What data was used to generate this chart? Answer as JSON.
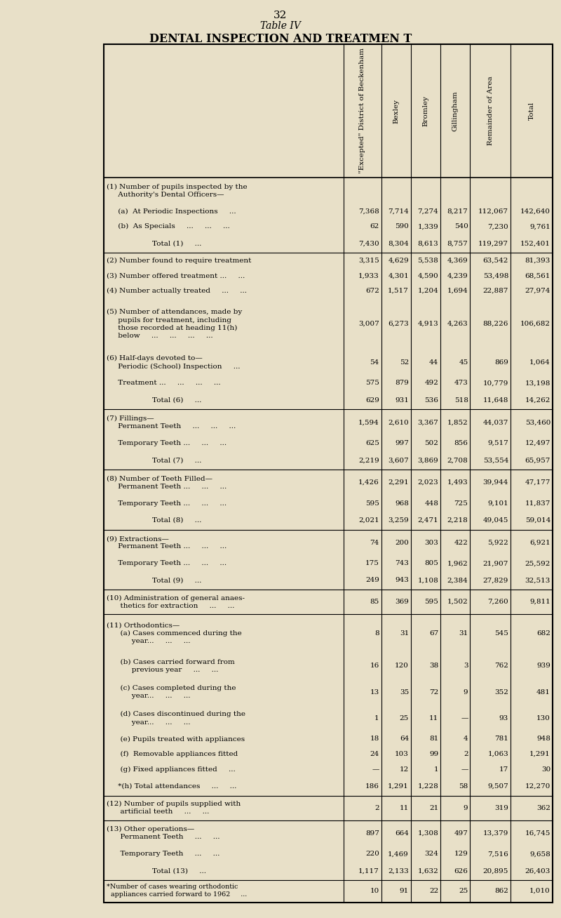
{
  "page_number": "32",
  "title_line1": "Table IV",
  "title_line2": "DENTAL INSPECTION AND TREATMEN T",
  "bg_color": "#e8e0c8",
  "col_headers": [
    "\"Excepted\" District of Beckenham",
    "Bexley",
    "Bromley",
    "Gillingham",
    "Remainder of Area",
    "Total"
  ],
  "rows": [
    {
      "label": "(1) Number of pupils inspected by the\n     Authority's Dental Officers—",
      "values": [
        "",
        "",
        "",
        "",
        "",
        ""
      ],
      "type": "header"
    },
    {
      "label": "     (a)  At Periodic Inspections     ...",
      "values": [
        "7,368",
        "7,714",
        "7,274",
        "8,217",
        "112,067",
        "142,640"
      ],
      "type": "data"
    },
    {
      "label": "     (b)  As Specials     ...     ...     ...",
      "values": [
        "62",
        "590",
        "1,339",
        "540",
        "7,230",
        "9,761"
      ],
      "type": "data"
    },
    {
      "label": "                    Total (1)     ...",
      "values": [
        "7,430",
        "8,304",
        "8,613",
        "8,757",
        "119,297",
        "152,401"
      ],
      "type": "total"
    },
    {
      "label": "(2) Number found to require treatment",
      "values": [
        "3,315",
        "4,629",
        "5,538",
        "4,369",
        "63,542",
        "81,393"
      ],
      "type": "data"
    },
    {
      "label": "(3) Number offered treatment ...     ...",
      "values": [
        "1,933",
        "4,301",
        "4,590",
        "4,239",
        "53,498",
        "68,561"
      ],
      "type": "data"
    },
    {
      "label": "(4) Number actually treated     ...     ...",
      "values": [
        "672",
        "1,517",
        "1,204",
        "1,694",
        "22,887",
        "27,974"
      ],
      "type": "data"
    },
    {
      "label": "(5) Number of attendances, made by\n     pupils for treatment, including\n     those recorded at heading 11(h)\n     below     ...     ...     ...     ...",
      "values": [
        "3,007",
        "6,273",
        "4,913",
        "4,263",
        "88,226",
        "106,682"
      ],
      "type": "data"
    },
    {
      "label": "(6) Half-days devoted to—\n     Periodic (School) Inspection     ...",
      "values": [
        "54",
        "52",
        "44",
        "45",
        "869",
        "1,064"
      ],
      "type": "data"
    },
    {
      "label": "     Treatment ...     ...     ...     ...",
      "values": [
        "575",
        "879",
        "492",
        "473",
        "10,779",
        "13,198"
      ],
      "type": "data"
    },
    {
      "label": "                    Total (6)     ...",
      "values": [
        "629",
        "931",
        "536",
        "518",
        "11,648",
        "14,262"
      ],
      "type": "total"
    },
    {
      "label": "(7) Fillings—\n     Permanent Teeth     ...     ...     ...",
      "values": [
        "1,594",
        "2,610",
        "3,367",
        "1,852",
        "44,037",
        "53,460"
      ],
      "type": "data"
    },
    {
      "label": "     Temporary Teeth ...     ...     ...",
      "values": [
        "625",
        "997",
        "502",
        "856",
        "9,517",
        "12,497"
      ],
      "type": "data"
    },
    {
      "label": "                    Total (7)     ...",
      "values": [
        "2,219",
        "3,607",
        "3,869",
        "2,708",
        "53,554",
        "65,957"
      ],
      "type": "total"
    },
    {
      "label": "(8) Number of Teeth Filled—\n     Permanent Teeth ...     ...     ...",
      "values": [
        "1,426",
        "2,291",
        "2,023",
        "1,493",
        "39,944",
        "47,177"
      ],
      "type": "data"
    },
    {
      "label": "     Temporary Teeth ...     ...     ...",
      "values": [
        "595",
        "968",
        "448",
        "725",
        "9,101",
        "11,837"
      ],
      "type": "data"
    },
    {
      "label": "                    Total (8)     ...",
      "values": [
        "2,021",
        "3,259",
        "2,471",
        "2,218",
        "49,045",
        "59,014"
      ],
      "type": "total"
    },
    {
      "label": "(9) Extractions—\n     Permanent Teeth ...     ...     ...",
      "values": [
        "74",
        "200",
        "303",
        "422",
        "5,922",
        "6,921"
      ],
      "type": "data"
    },
    {
      "label": "     Temporary Teeth ...     ...     ...",
      "values": [
        "175",
        "743",
        "805",
        "1,962",
        "21,907",
        "25,592"
      ],
      "type": "data"
    },
    {
      "label": "                    Total (9)     ...",
      "values": [
        "249",
        "943",
        "1,108",
        "2,384",
        "27,829",
        "32,513"
      ],
      "type": "total"
    },
    {
      "label": "(10) Administration of general anaes-\n      thetics for extraction     ...     ...",
      "values": [
        "85",
        "369",
        "595",
        "1,502",
        "7,260",
        "9,811"
      ],
      "type": "total"
    },
    {
      "label": "(11) Orthodontics—\n      (a) Cases commenced during the\n           year...     ...     ...",
      "values": [
        "8",
        "31",
        "67",
        "31",
        "545",
        "682"
      ],
      "type": "data"
    },
    {
      "label": "      (b) Cases carried forward from\n           previous year     ...     ...",
      "values": [
        "16",
        "120",
        "38",
        "3",
        "762",
        "939"
      ],
      "type": "data"
    },
    {
      "label": "      (c) Cases completed during the\n           year...     ...     ...",
      "values": [
        "13",
        "35",
        "72",
        "9",
        "352",
        "481"
      ],
      "type": "data"
    },
    {
      "label": "      (d) Cases discontinued during the\n           year...     ...     ...",
      "values": [
        "1",
        "25",
        "11",
        "—",
        "93",
        "130"
      ],
      "type": "data"
    },
    {
      "label": "      (e) Pupils treated with appliances",
      "values": [
        "18",
        "64",
        "81",
        "4",
        "781",
        "948"
      ],
      "type": "data"
    },
    {
      "label": "      (f)  Removable appliances fitted",
      "values": [
        "24",
        "103",
        "99",
        "2",
        "1,063",
        "1,291"
      ],
      "type": "data"
    },
    {
      "label": "      (g) Fixed appliances fitted     ...",
      "values": [
        "—",
        "12",
        "1",
        "—",
        "17",
        "30"
      ],
      "type": "data"
    },
    {
      "label": "     *(h) Total attendances     ...     ...",
      "values": [
        "186",
        "1,291",
        "1,228",
        "58",
        "9,507",
        "12,270"
      ],
      "type": "total"
    },
    {
      "label": "(12) Number of pupils supplied with\n      artificial teeth     ...     ...",
      "values": [
        "2",
        "11",
        "21",
        "9",
        "319",
        "362"
      ],
      "type": "total"
    },
    {
      "label": "(13) Other operations—\n      Permanent Teeth     ...     ...",
      "values": [
        "897",
        "664",
        "1,308",
        "497",
        "13,379",
        "16,745"
      ],
      "type": "data"
    },
    {
      "label": "      Temporary Teeth     ...     ...",
      "values": [
        "220",
        "1,469",
        "324",
        "129",
        "7,516",
        "9,658"
      ],
      "type": "data"
    },
    {
      "label": "                    Total (13)     ...",
      "values": [
        "1,117",
        "2,133",
        "1,632",
        "626",
        "20,895",
        "26,403"
      ],
      "type": "total"
    },
    {
      "label": "*Number of cases wearing orthodontic\n  appliances carried forward to 1962     ...",
      "values": [
        "10",
        "91",
        "22",
        "25",
        "862",
        "1,010"
      ],
      "type": "footnote"
    }
  ]
}
